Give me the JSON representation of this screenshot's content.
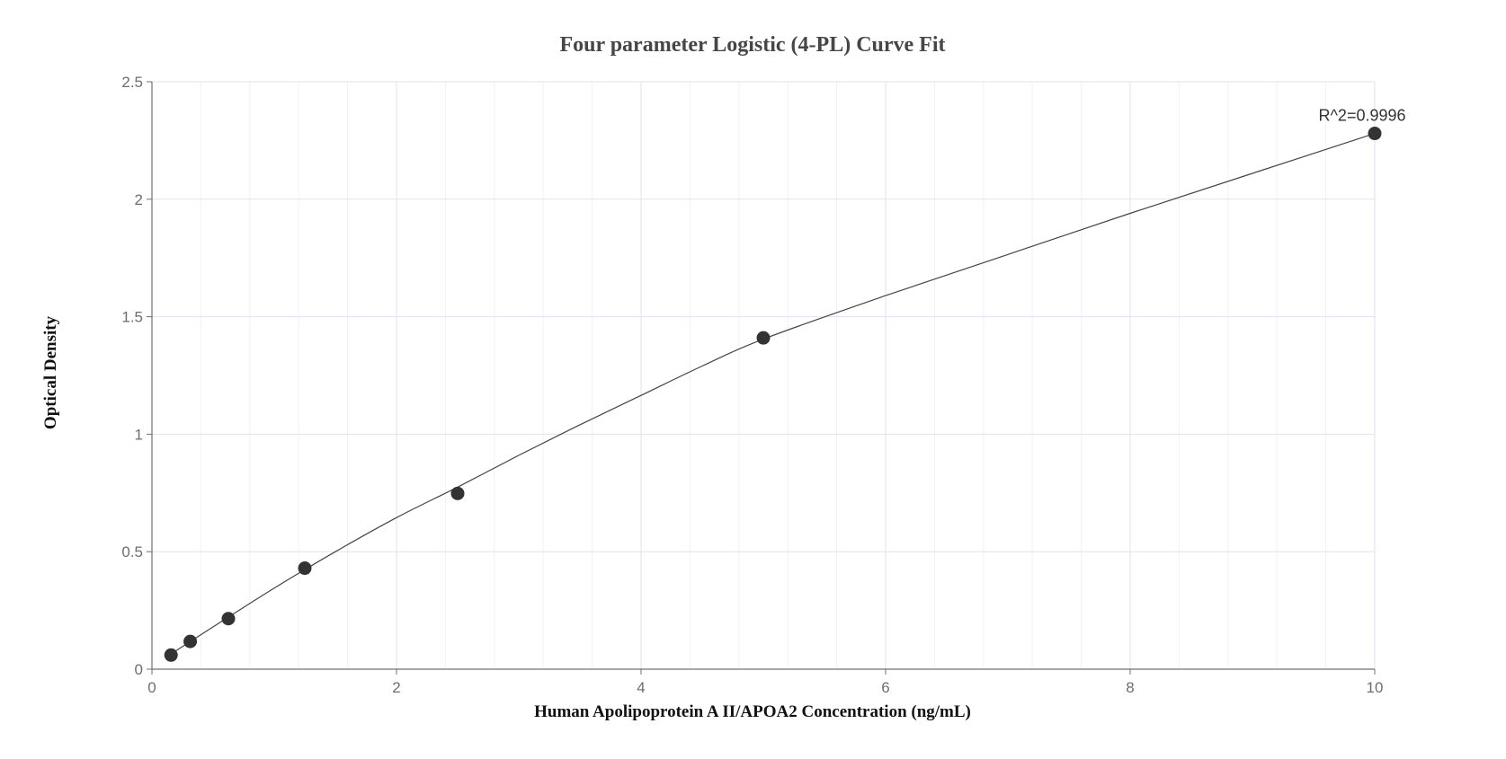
{
  "chart_data": {
    "type": "scatter",
    "title": "Four parameter Logistic (4-PL) Curve Fit",
    "xlabel": "Human Apolipoprotein A II/APOA2 Concentration (ng/mL)",
    "ylabel": "Optical Density",
    "xlim": [
      0,
      10
    ],
    "ylim": [
      0,
      2.5
    ],
    "x_ticks": [
      "0",
      "2",
      "4",
      "6",
      "8",
      "10"
    ],
    "y_ticks": [
      "0",
      "0.5",
      "1",
      "1.5",
      "2",
      "2.5"
    ],
    "grid": true,
    "series": [
      {
        "x": [
          0.156,
          0.313,
          0.625,
          1.25,
          2.5,
          5,
          10
        ],
        "y": [
          0.06,
          0.118,
          0.215,
          0.43,
          0.748,
          1.41,
          2.28
        ]
      }
    ],
    "fit_curve": {
      "model": "4PL",
      "x": [
        0.156,
        0.5,
        1,
        1.5,
        2,
        2.5,
        3,
        3.5,
        4,
        4.5,
        5,
        6,
        7,
        8,
        9,
        10
      ],
      "y": [
        0.065,
        0.18,
        0.345,
        0.5,
        0.645,
        0.775,
        0.91,
        1.04,
        1.165,
        1.29,
        1.405,
        1.59,
        1.765,
        1.94,
        2.11,
        2.28
      ]
    },
    "annotation": {
      "text": "R^2=0.9996",
      "x": 10,
      "y": 2.28
    },
    "colors": {
      "points": "#333333",
      "curve": "#444444",
      "grid": "#dfe3ee"
    }
  }
}
